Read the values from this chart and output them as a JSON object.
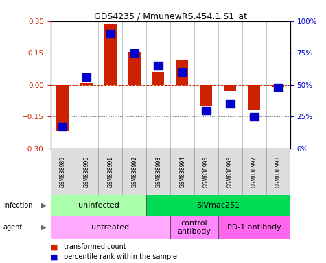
{
  "title": "GDS4235 / MmunewRS.454.1.S1_at",
  "samples": [
    "GSM838989",
    "GSM838990",
    "GSM838991",
    "GSM838992",
    "GSM838993",
    "GSM838994",
    "GSM838995",
    "GSM838996",
    "GSM838997",
    "GSM838998"
  ],
  "red_bars": [
    -0.215,
    0.01,
    0.285,
    0.155,
    0.06,
    0.12,
    -0.1,
    -0.03,
    -0.12,
    -0.01
  ],
  "blue_squares_pct": [
    17.5,
    56,
    90,
    75,
    65,
    60,
    30,
    35,
    25,
    48
  ],
  "ylim_left": [
    -0.3,
    0.3
  ],
  "ylim_right": [
    0,
    100
  ],
  "yticks_left": [
    -0.3,
    -0.15,
    0,
    0.15,
    0.3
  ],
  "yticks_right": [
    0,
    25,
    50,
    75,
    100
  ],
  "ytick_labels_right": [
    "0%",
    "25%",
    "50%",
    "75%",
    "100%"
  ],
  "hlines_dotted": [
    -0.15,
    0.15
  ],
  "hline_dashed": 0.0,
  "infection_groups": [
    {
      "label": "uninfected",
      "start": 0,
      "end": 4,
      "color": "#AAFFAA"
    },
    {
      "label": "SIVmac251",
      "start": 4,
      "end": 10,
      "color": "#00DD55"
    }
  ],
  "agent_groups": [
    {
      "label": "untreated",
      "start": 0,
      "end": 5,
      "color": "#FFAAFF"
    },
    {
      "label": "control\nantibody",
      "start": 5,
      "end": 7,
      "color": "#FF88FF"
    },
    {
      "label": "PD-1 antibody",
      "start": 7,
      "end": 10,
      "color": "#FF66EE"
    }
  ],
  "red_color": "#CC2200",
  "blue_color": "#0000CC",
  "bar_width": 0.5
}
